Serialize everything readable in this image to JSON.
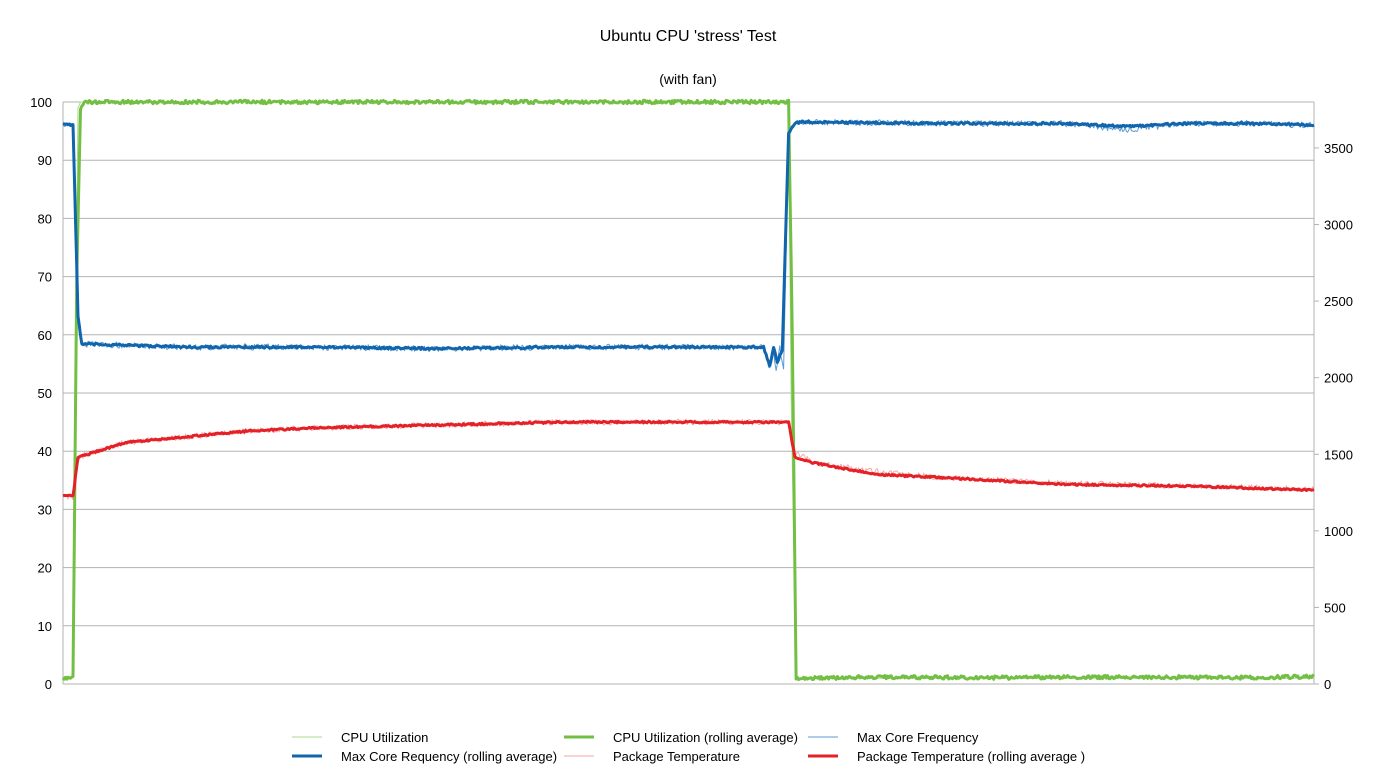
{
  "chart_data": {
    "type": "line",
    "title": "Ubuntu CPU 'stress' Test",
    "subtitle": "(with fan)",
    "xlabel": "",
    "ylabel": "",
    "x_range": [
      0,
      1000
    ],
    "y_left": {
      "range": [
        0,
        100
      ],
      "ticks": [
        "0",
        "10",
        "20",
        "30",
        "40",
        "50",
        "60",
        "70",
        "80",
        "90",
        "100"
      ]
    },
    "y_right": {
      "range": [
        0,
        3800
      ],
      "ticks": [
        "0",
        "500",
        "1000",
        "1500",
        "2000",
        "2500",
        "3000",
        "3500"
      ]
    },
    "grid": true,
    "legend_position": "bottom",
    "series": [
      {
        "name": "CPU Utilization",
        "axis": "left",
        "color": "#aadb8f",
        "width": 1,
        "x": [
          0,
          8,
          10,
          12,
          14,
          560,
          580,
          582,
          586,
          600,
          700,
          800,
          900,
          1000
        ],
        "y": [
          0.5,
          1.5,
          60,
          99,
          100,
          100,
          100,
          50,
          1,
          1,
          1,
          1,
          1,
          1
        ]
      },
      {
        "name": "CPU Utilization (rolling average)",
        "axis": "left",
        "color": "#72bf44",
        "width": 3,
        "x": [
          0,
          8,
          11,
          14,
          18,
          580,
          583,
          586,
          590,
          650,
          750,
          850,
          950,
          1000
        ],
        "y": [
          0.8,
          1.2,
          70,
          99,
          100,
          100,
          60,
          1,
          1,
          1.2,
          1.1,
          1.2,
          1.1,
          1.3
        ],
        "noise": 0.3
      },
      {
        "name": "Max Core Frequency",
        "axis": "right",
        "color": "#5b9bd5",
        "width": 1,
        "x": [
          0,
          8,
          12,
          15,
          100,
          200,
          300,
          400,
          500,
          560,
          565,
          568,
          570,
          573,
          576,
          580,
          585,
          590,
          700,
          800,
          850,
          900,
          950,
          1000
        ],
        "y": [
          3660,
          3650,
          2350,
          2220,
          2200,
          2200,
          2190,
          2200,
          2200,
          2200,
          2050,
          2200,
          2040,
          2200,
          2050,
          3600,
          3660,
          3670,
          3660,
          3660,
          3620,
          3660,
          3660,
          3650
        ],
        "noise": 20
      },
      {
        "name": "Max Core Requency (rolling average)",
        "axis": "right",
        "color": "#1065ad",
        "width": 3,
        "x": [
          0,
          8,
          12,
          15,
          100,
          200,
          300,
          400,
          500,
          560,
          565,
          568,
          571,
          575,
          580,
          585,
          590,
          700,
          800,
          850,
          900,
          950,
          1000
        ],
        "y": [
          3660,
          3650,
          2400,
          2220,
          2200,
          2200,
          2190,
          2200,
          2200,
          2200,
          2080,
          2200,
          2100,
          2180,
          3600,
          3660,
          3670,
          3660,
          3660,
          3640,
          3660,
          3660,
          3650
        ],
        "noise": 7
      },
      {
        "name": "Package Temperature",
        "axis": "left",
        "color": "#f3a6a4",
        "width": 1,
        "x": [
          0,
          8,
          12,
          20,
          50,
          100,
          150,
          200,
          300,
          400,
          500,
          580,
          585,
          600,
          650,
          700,
          800,
          900,
          1000
        ],
        "y": [
          32.5,
          32,
          39,
          39.5,
          41.5,
          42.5,
          43.5,
          44,
          44.5,
          45,
          45,
          45,
          40,
          38,
          36.5,
          35.5,
          34.5,
          34,
          33.5
        ],
        "noise": 0.5
      },
      {
        "name": "Package Temperature (rolling average )",
        "axis": "left",
        "color": "#e32126",
        "width": 3,
        "x": [
          0,
          8,
          12,
          20,
          50,
          100,
          150,
          200,
          300,
          400,
          500,
          580,
          585,
          600,
          650,
          700,
          800,
          900,
          1000
        ],
        "y": [
          32.3,
          32.3,
          39,
          39.5,
          41.5,
          42.5,
          43.5,
          44,
          44.5,
          45,
          45,
          45,
          39,
          38,
          36,
          35.5,
          34.3,
          34,
          33.3
        ],
        "noise": 0.15
      }
    ]
  }
}
